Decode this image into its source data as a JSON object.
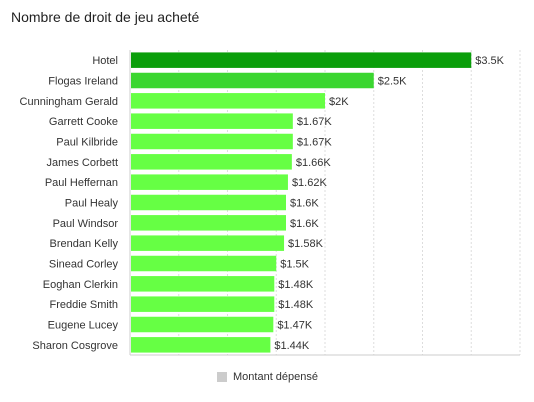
{
  "chart_data": {
    "type": "bar",
    "orientation": "horizontal",
    "title": "Nombre de droit de jeu acheté",
    "categories": [
      "Hotel",
      "Flogas Ireland",
      "Cunningham Gerald",
      "Garrett Cooke",
      "Paul Kilbride",
      "James Corbett",
      "Paul Heffernan",
      "Paul Healy",
      "Paul Windsor",
      "Brendan Kelly",
      "Sinead Corley",
      "Eoghan Clerkin",
      "Freddie Smith",
      "Eugene Lucey",
      "Sharon Cosgrove"
    ],
    "series": [
      {
        "name": "Montant dépensé",
        "values": [
          3500,
          2500,
          2000,
          1670,
          1670,
          1660,
          1620,
          1600,
          1600,
          1580,
          1500,
          1480,
          1480,
          1470,
          1440
        ]
      }
    ],
    "data_labels": [
      "$3.5K",
      "$2.5K",
      "$2K",
      "$1.67K",
      "$1.67K",
      "$1.66K",
      "$1.62K",
      "$1.6K",
      "$1.6K",
      "$1.58K",
      "$1.5K",
      "$1.48K",
      "$1.48K",
      "$1.47K",
      "$1.44K"
    ],
    "xlim": [
      0,
      4000
    ],
    "xlabel": "",
    "ylabel": "",
    "grid": true,
    "legend_position": "bottom",
    "colors": {
      "top": "#0a9e0a",
      "second": "#3bd630",
      "rest": "#66ff44",
      "legend_swatch": "#cccccc",
      "grid": "#dddddd"
    }
  }
}
